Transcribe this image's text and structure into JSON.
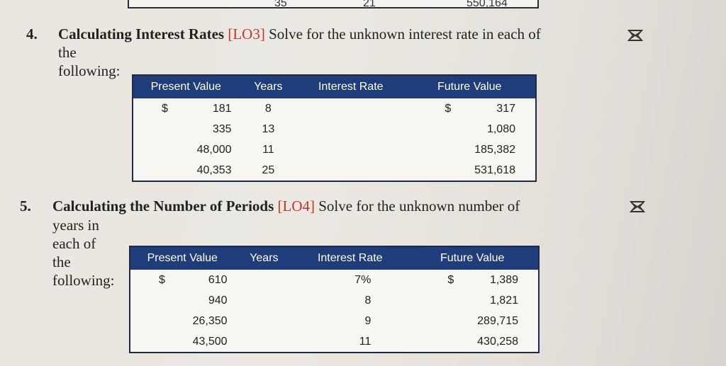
{
  "previous_table_row": {
    "years": "35",
    "interest_rate": "21",
    "future_value": "550,164"
  },
  "problem4": {
    "number": "4.",
    "title": "Calculating Interest Rates",
    "lo": "[LO3]",
    "text_line1": "Solve for the unknown interest rate in each of",
    "text_line2": "the following:",
    "icon": "excel-x-icon",
    "table": {
      "headers": [
        "Present Value",
        "Years",
        "Interest Rate",
        "Future Value"
      ],
      "rows": [
        {
          "pv_cur": "$",
          "pv": "181",
          "years": "8",
          "rate": "",
          "fv_cur": "$",
          "fv": "317"
        },
        {
          "pv_cur": "",
          "pv": "335",
          "years": "13",
          "rate": "",
          "fv_cur": "",
          "fv": "1,080"
        },
        {
          "pv_cur": "",
          "pv": "48,000",
          "years": "11",
          "rate": "",
          "fv_cur": "",
          "fv": "185,382"
        },
        {
          "pv_cur": "",
          "pv": "40,353",
          "years": "25",
          "rate": "",
          "fv_cur": "",
          "fv": "531,618"
        }
      ]
    }
  },
  "problem5": {
    "number": "5.",
    "title": "Calculating the Number of Periods",
    "lo": "[LO4]",
    "text_line1": "Solve for the unknown number of",
    "text_line2": "years in each of the following:",
    "icon": "excel-x-icon",
    "table": {
      "headers": [
        "Present Value",
        "Years",
        "Interest Rate",
        "Future Value"
      ],
      "rows": [
        {
          "pv_cur": "$",
          "pv": "610",
          "years": "",
          "rate": "7%",
          "fv_cur": "$",
          "fv": "1,389"
        },
        {
          "pv_cur": "",
          "pv": "940",
          "years": "",
          "rate": "8",
          "fv_cur": "",
          "fv": "1,821"
        },
        {
          "pv_cur": "",
          "pv": "26,350",
          "years": "",
          "rate": "9",
          "fv_cur": "",
          "fv": "289,715"
        },
        {
          "pv_cur": "",
          "pv": "43,500",
          "years": "",
          "rate": "11",
          "fv_cur": "",
          "fv": "430,258"
        }
      ]
    }
  }
}
